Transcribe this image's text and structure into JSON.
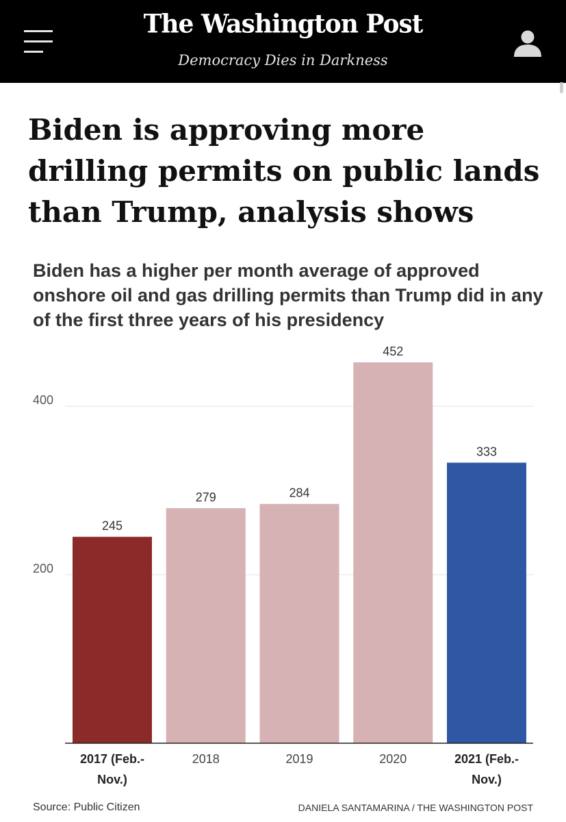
{
  "masthead": {
    "logo_text": "The Washington Post",
    "tagline": "Democracy Dies in Darkness",
    "menu_icon": "hamburger-menu-icon",
    "user_icon": "user-account-icon",
    "background": "#000000"
  },
  "article": {
    "headline": "Biden is approving more drilling permits on public lands than Trump, analysis shows"
  },
  "chart_data": {
    "type": "bar",
    "title": "Biden has a higher per month average of approved onshore oil and gas drilling permits than Trump did in any of the first three years of his presidency",
    "categories": [
      "2017 (Feb.- Nov.)",
      "2018",
      "2019",
      "2020",
      "2021 (Feb.- Nov.)"
    ],
    "category_lines": [
      [
        "2017 (Feb.-",
        "Nov.)"
      ],
      [
        "2018"
      ],
      [
        "2019"
      ],
      [
        "2020"
      ],
      [
        "2021 (Feb.-",
        "Nov.)"
      ]
    ],
    "category_bold": [
      true,
      false,
      false,
      false,
      true
    ],
    "values": [
      245,
      279,
      284,
      452,
      333
    ],
    "value_labels": [
      "245",
      "279",
      "284",
      "452",
      "333"
    ],
    "colors": [
      "#8b2a28",
      "#d6b2b4",
      "#d6b2b4",
      "#d6b2b4",
      "#2f57a3"
    ],
    "yticks": [
      200,
      400
    ],
    "ytick_labels": [
      "200",
      "400"
    ],
    "ylim": [
      0,
      452
    ],
    "xlabel": "",
    "ylabel": "",
    "grid": true
  },
  "footer": {
    "source": "Source: Public Citizen",
    "credit": "DANIELA SANTAMARINA / THE WASHINGTON POST"
  }
}
